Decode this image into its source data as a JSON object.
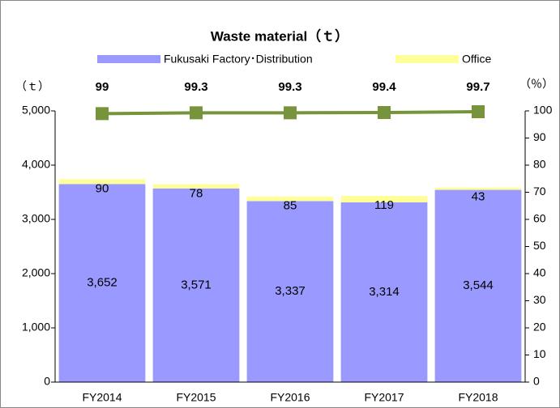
{
  "chart_data": {
    "type": "bar",
    "stacked": true,
    "title": "Waste material（ｔ）",
    "y_unit": "（ｔ）",
    "y2_unit": "（％）",
    "categories": [
      "FY2014",
      "FY2015",
      "FY2016",
      "FY2017",
      "FY2018"
    ],
    "series": [
      {
        "name": "Fukusaki Factory･Distribution",
        "color": "#9999ff",
        "values": [
          3652,
          3571,
          3337,
          3314,
          3544
        ],
        "value_labels": [
          "3,652",
          "3,571",
          "3,337",
          "3,314",
          "3,544"
        ]
      },
      {
        "name": "Office",
        "color": "#ffff99",
        "values": [
          90,
          78,
          85,
          119,
          43
        ]
      },
      {
        "type": "line",
        "axis": "y2",
        "color": "#77933c",
        "values": [
          99,
          99.3,
          99.3,
          99.4,
          99.7
        ]
      }
    ],
    "ylim": [
      0,
      5000
    ],
    "yticks": [
      0,
      {
        "value": 1000,
        "label": "1,000"
      },
      {
        "value": 2000,
        "label": "2,000"
      },
      {
        "value": 3000,
        "label": "3,000"
      },
      {
        "value": 4000,
        "label": "4,000"
      },
      {
        "value": 5000,
        "label": "5,000"
      }
    ],
    "y2lim": [
      0,
      100
    ],
    "y2ticks": [
      0,
      10,
      20,
      30,
      40,
      50,
      60,
      70,
      80,
      90,
      100
    ],
    "legend": "top"
  }
}
